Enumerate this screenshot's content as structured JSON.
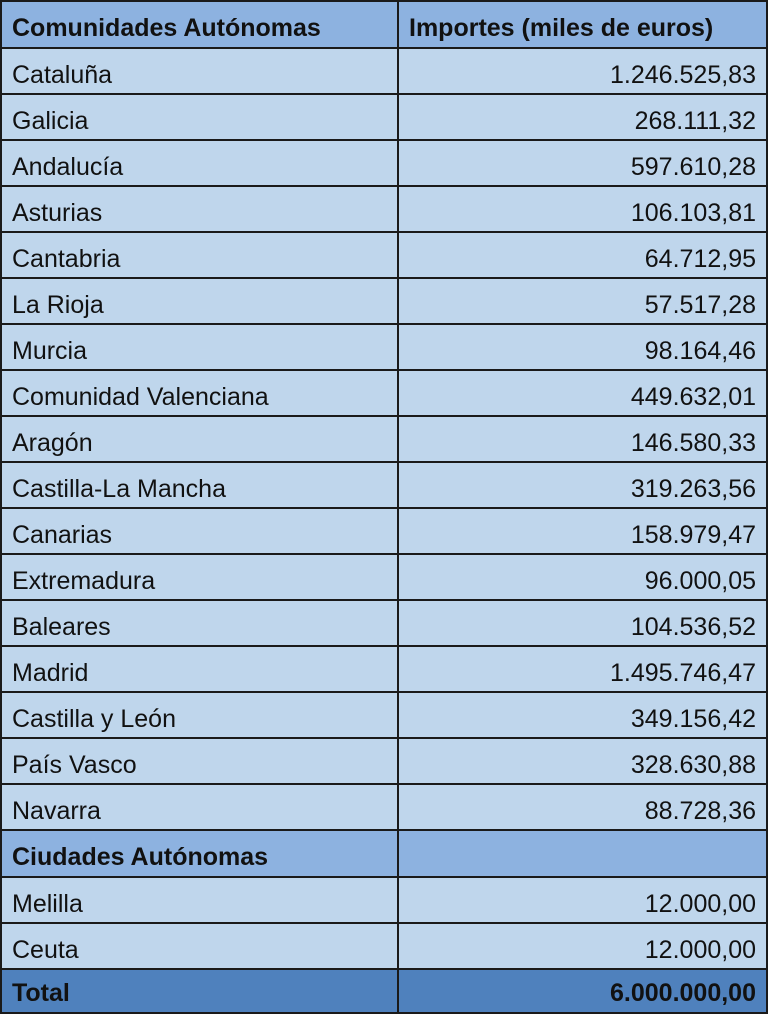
{
  "table": {
    "headers": [
      "Comunidades Autónomas",
      "Importes (miles de euros)"
    ],
    "rows": [
      {
        "name": "Cataluña",
        "value": "1.246.525,83"
      },
      {
        "name": "Galicia",
        "value": "268.111,32"
      },
      {
        "name": "Andalucía",
        "value": "597.610,28"
      },
      {
        "name": "Asturias",
        "value": "106.103,81"
      },
      {
        "name": "Cantabria",
        "value": "64.712,95"
      },
      {
        "name": "La Rioja",
        "value": "57.517,28"
      },
      {
        "name": "Murcia",
        "value": "98.164,46"
      },
      {
        "name": "Comunidad Valenciana",
        "value": "449.632,01"
      },
      {
        "name": "Aragón",
        "value": "146.580,33"
      },
      {
        "name": "Castilla-La Mancha",
        "value": "319.263,56"
      },
      {
        "name": "Canarias",
        "value": "158.979,47"
      },
      {
        "name": "Extremadura",
        "value": "96.000,05"
      },
      {
        "name": "Baleares",
        "value": "104.536,52"
      },
      {
        "name": "Madrid",
        "value": "1.495.746,47"
      },
      {
        "name": "Castilla y León",
        "value": "349.156,42"
      },
      {
        "name": "País Vasco",
        "value": "328.630,88"
      },
      {
        "name": "Navarra",
        "value": "88.728,36"
      }
    ],
    "section_header": "Ciudades Autónomas",
    "section_rows": [
      {
        "name": "Melilla",
        "value": "12.000,00"
      },
      {
        "name": "Ceuta",
        "value": "12.000,00"
      }
    ],
    "total": {
      "label": "Total",
      "value": "6.000.000,00"
    }
  }
}
